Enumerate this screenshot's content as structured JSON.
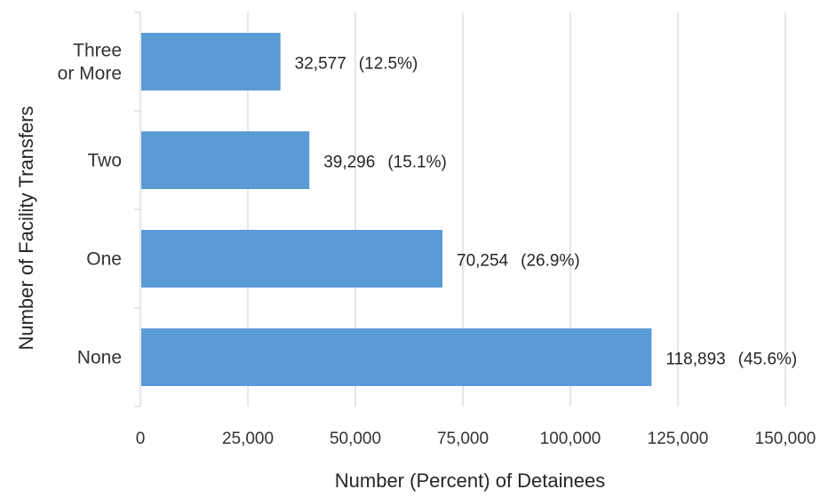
{
  "chart_data": {
    "type": "bar",
    "orientation": "horizontal",
    "title": "",
    "xlabel": "Number (Percent) of Detainees",
    "ylabel": "Number of Facility Transfers",
    "categories": [
      {
        "lines": [
          "Three",
          "or More"
        ]
      },
      {
        "lines": [
          "Two"
        ]
      },
      {
        "lines": [
          "One"
        ]
      },
      {
        "lines": [
          "None"
        ]
      }
    ],
    "values": [
      32577,
      39296,
      70254,
      118893
    ],
    "data_labels": [
      {
        "number": "32,577",
        "percent": "(12.5%)"
      },
      {
        "number": "39,296",
        "percent": "(15.1%)"
      },
      {
        "number": "70,254",
        "percent": "(26.9%)"
      },
      {
        "number": "118,893",
        "percent": "(45.6%)"
      }
    ],
    "xlim": [
      0,
      150000
    ],
    "xticks": [
      0,
      25000,
      50000,
      75000,
      100000,
      125000,
      150000
    ],
    "xtick_labels": [
      "0",
      "25,000",
      "50,000",
      "75,000",
      "100,000",
      "125,000",
      "150,000"
    ],
    "grid": true,
    "legend": "none",
    "bar_color": "#5B9BD5",
    "grid_color": "#D9D9D9"
  }
}
